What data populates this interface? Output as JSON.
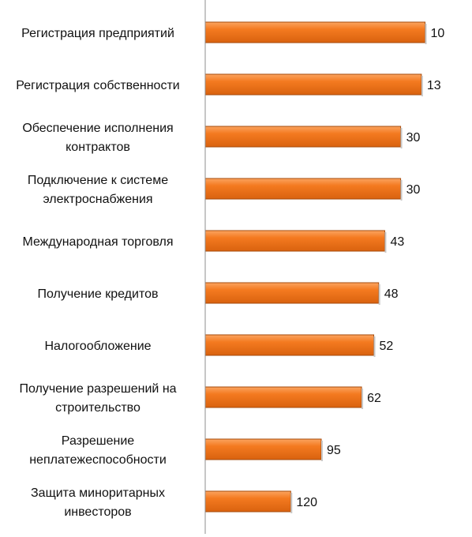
{
  "chart_data": {
    "type": "bar",
    "orientation": "horizontal",
    "title": "",
    "xlabel": "",
    "ylabel": "",
    "categories": [
      [
        "Регистрация предприятий"
      ],
      [
        "Регистрация собственности"
      ],
      [
        "Обеспечение исполнения",
        "контрактов"
      ],
      [
        "Подключение к системе",
        "электроснабжения"
      ],
      [
        "Международная торговля"
      ],
      [
        "Получение кредитов"
      ],
      [
        "Налогообложение"
      ],
      [
        "Получение разрешений на",
        "строительство"
      ],
      [
        "Разрешение",
        "неплатежеспособности"
      ],
      [
        "Защита миноритарных",
        "инвесторов"
      ]
    ],
    "values": [
      10,
      13,
      30,
      30,
      43,
      48,
      52,
      62,
      95,
      120
    ],
    "data_labels": [
      "10",
      "13",
      "30",
      "30",
      "43",
      "48",
      "52",
      "62",
      "95",
      "120"
    ],
    "axis_reversed": true,
    "xlim": [
      0,
      190
    ],
    "grid": false,
    "legend": "none",
    "bar_color": "#F47A20",
    "bar_edge_color": "#A64B0C",
    "axis_color": "#8C8C8C"
  }
}
